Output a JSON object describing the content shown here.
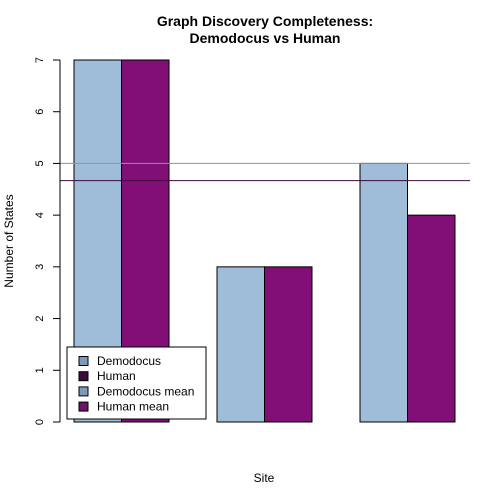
{
  "chart_data": {
    "type": "bar",
    "title_line1": "Graph Discovery Completeness:",
    "title_line2": "Demodocus vs Human",
    "xlabel": "Site",
    "ylabel": "Number of States",
    "ylim": [
      0,
      7
    ],
    "yticks": [
      0,
      1,
      2,
      3,
      4,
      5,
      6,
      7
    ],
    "categories": [
      "",
      "",
      ""
    ],
    "series": [
      {
        "name": "Demodocus",
        "values": [
          7,
          3,
          5
        ],
        "color": "#9FBCD9"
      },
      {
        "name": "Human",
        "values": [
          7,
          3,
          4
        ],
        "color": "#820F76"
      }
    ],
    "means": [
      {
        "name": "Demodocus mean",
        "value": 5.0,
        "color": "#7E9AB8"
      },
      {
        "name": "Human mean",
        "value": 4.667,
        "color": "#3D0A3D"
      }
    ],
    "legend": {
      "position": "bottom-left",
      "entries": [
        {
          "label": "Demodocus",
          "color": "#7E9AB8"
        },
        {
          "label": "Human",
          "color": "#3D0A3D"
        },
        {
          "label": "Demodocus mean",
          "color": "#7E9AB8"
        },
        {
          "label": "Human mean",
          "color": "#6B1566"
        }
      ]
    },
    "grid": false
  }
}
